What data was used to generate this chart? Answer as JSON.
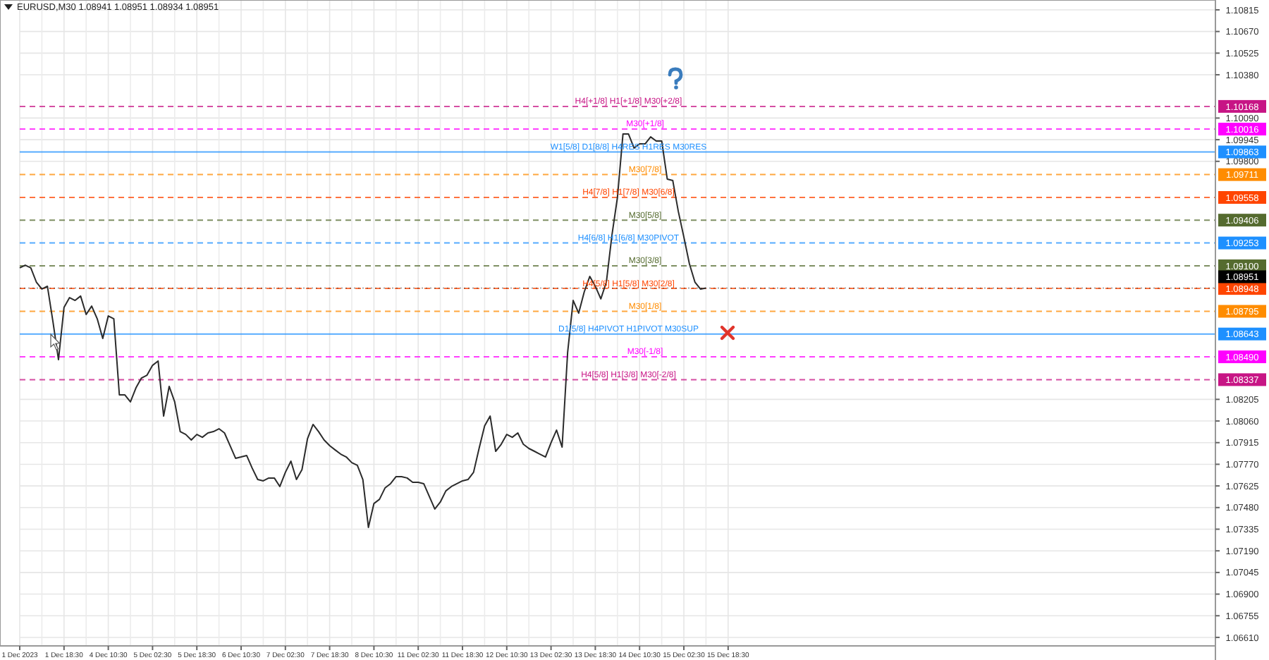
{
  "chart_data": {
    "type": "line",
    "title": "EURUSD,M30  1.08941 1.08951 1.08934 1.08951",
    "categories": [
      "1 Dec 2023",
      null,
      null,
      null,
      null,
      null,
      null,
      null,
      "1 Dec 18:30",
      null,
      null,
      null,
      null,
      null,
      null,
      null,
      "4 Dec 10:30",
      null,
      null,
      null,
      null,
      null,
      null,
      null,
      "5 Dec 02:30",
      null,
      null,
      null,
      null,
      null,
      null,
      null,
      "5 Dec 18:30",
      null,
      null,
      null,
      null,
      null,
      null,
      null,
      "6 Dec 10:30",
      null,
      null,
      null,
      null,
      null,
      null,
      null,
      "7 Dec 02:30",
      null,
      null,
      null,
      null,
      null,
      null,
      null,
      "7 Dec 18:30",
      null,
      null,
      null,
      null,
      null,
      null,
      null,
      "8 Dec 10:30",
      null,
      null,
      null,
      null,
      null,
      null,
      null,
      "11 Dec 02:30",
      null,
      null,
      null,
      null,
      null,
      null,
      null,
      "11 Dec 18:30",
      null,
      null,
      null,
      null,
      null,
      null,
      null,
      "12 Dec 10:30",
      null,
      null,
      null,
      null,
      null,
      null,
      null,
      "13 Dec 02:30",
      null,
      null,
      null,
      null,
      null,
      null,
      null,
      "13 Dec 18:30",
      null,
      null,
      null,
      null,
      null,
      null,
      null,
      "14 Dec 10:30",
      null,
      null,
      null,
      null,
      null,
      null,
      null,
      "15 Dec 02:30",
      null,
      null,
      null,
      null,
      null,
      null,
      null,
      "15 Dec 18:30"
    ],
    "series": [
      {
        "color": "#2b2b2b",
        "values": [
          1.09086,
          1.09104,
          1.09086,
          1.08991,
          1.08944,
          1.08963,
          1.08726,
          1.08471,
          1.08821,
          1.08887,
          1.08868,
          1.08897,
          1.08774,
          1.0883,
          1.08745,
          1.08613,
          1.08764,
          1.08745,
          1.08235,
          1.08235,
          1.08188,
          1.08282,
          1.08348,
          1.08367,
          1.08433,
          1.08462,
          1.08093,
          1.08292,
          1.08188,
          1.07989,
          1.0797,
          1.07933,
          1.0797,
          1.07951,
          1.0798,
          1.07989,
          1.08008,
          1.0798,
          1.07895,
          1.0781,
          1.07819,
          1.07829,
          1.07744,
          1.07668,
          1.07659,
          1.07678,
          1.07678,
          1.07621,
          1.07716,
          1.07791,
          1.07668,
          1.07734,
          1.07942,
          1.08037,
          1.07989,
          1.07933,
          1.07895,
          1.07866,
          1.07838,
          1.07819,
          1.07781,
          1.07763,
          1.07668,
          1.07347,
          1.07507,
          1.07535,
          1.07611,
          1.0764,
          1.07687,
          1.07687,
          1.07678,
          1.07649,
          1.07649,
          1.0764,
          1.07555,
          1.0747,
          1.07517,
          1.07592,
          1.07621,
          1.0764,
          1.07659,
          1.07668,
          1.07716,
          1.07876,
          1.08027,
          1.08093,
          1.07857,
          1.07904,
          1.0797,
          1.07951,
          1.0798,
          1.07904,
          1.07876,
          1.07857,
          1.07838,
          1.07819,
          1.07914,
          1.07999,
          1.07885,
          1.08519,
          1.08868,
          1.08783,
          1.08925,
          1.09029,
          1.08963,
          1.08878,
          1.08991,
          1.09303,
          1.09558,
          1.09983,
          1.09983,
          1.09889,
          1.09917,
          1.09917,
          1.09964,
          1.09936,
          1.09936,
          1.09681,
          1.09671,
          1.09464,
          1.09293,
          1.09114,
          1.08991,
          1.08944,
          1.08951,
          null,
          null,
          null,
          null
        ]
      }
    ],
    "ylim": [
      1.06553,
      1.10881
    ],
    "yticks": [
      {
        "value": 1.10815,
        "label": "1.10815"
      },
      {
        "value": 1.1067,
        "label": "1.10670"
      },
      {
        "value": 1.10525,
        "label": "1.10525"
      },
      {
        "value": 1.1038,
        "label": "1.10380"
      },
      {
        "value": 1.1009,
        "label": "1.10090"
      },
      {
        "value": 1.09945,
        "label": "1.09945"
      },
      {
        "value": 1.098,
        "label": "1.09800"
      },
      {
        "value": 1.08205,
        "label": "1.08205"
      },
      {
        "value": 1.0806,
        "label": "1.08060"
      },
      {
        "value": 1.07915,
        "label": "1.07915"
      },
      {
        "value": 1.0777,
        "label": "1.07770"
      },
      {
        "value": 1.07625,
        "label": "1.07625"
      },
      {
        "value": 1.0748,
        "label": "1.07480"
      },
      {
        "value": 1.07335,
        "label": "1.07335"
      },
      {
        "value": 1.0719,
        "label": "1.07190"
      },
      {
        "value": 1.07045,
        "label": "1.07045"
      },
      {
        "value": 1.069,
        "label": "1.06900"
      },
      {
        "value": 1.06755,
        "label": "1.06755"
      },
      {
        "value": 1.0661,
        "label": "1.06610"
      }
    ],
    "grid": true,
    "ref_lines": [
      {
        "axis": "y",
        "value": 1.10168,
        "label": "1.10168",
        "color": "#c71585",
        "line_style": "dashed"
      },
      {
        "axis": "y",
        "value": 1.10016,
        "label": "1.10016",
        "color": "#ff00ff",
        "line_style": "dashed"
      },
      {
        "axis": "y",
        "value": 1.09863,
        "label": "1.09863",
        "color": "#1e90ff",
        "line_style": "solid"
      },
      {
        "axis": "y",
        "value": 1.09711,
        "label": "1.09711",
        "color": "#ff8c00",
        "line_style": "dashed"
      },
      {
        "axis": "y",
        "value": 1.09558,
        "label": "1.09558",
        "color": "#ff4500",
        "line_style": "dashed"
      },
      {
        "axis": "y",
        "value": 1.09406,
        "label": "1.09406",
        "color": "#556b2f",
        "line_style": "dashed"
      },
      {
        "axis": "y",
        "value": 1.09253,
        "label": "1.09253",
        "color": "#1e90ff",
        "line_style": "dashed"
      },
      {
        "axis": "y",
        "value": 1.091,
        "label": "1.09100",
        "color": "#556b2f",
        "line_style": "dashed"
      },
      {
        "axis": "y",
        "value": 1.08948,
        "label": "1.08948",
        "color": "#ff4500",
        "line_style": "dashed"
      },
      {
        "axis": "y",
        "value": 1.08795,
        "label": "1.08795",
        "color": "#ff8c00",
        "line_style": "dashed"
      },
      {
        "axis": "y",
        "value": 1.08643,
        "label": "1.08643",
        "color": "#1e90ff",
        "line_style": "solid"
      },
      {
        "axis": "y",
        "value": 1.0849,
        "label": "1.08490",
        "color": "#ff00ff",
        "line_style": "dashed"
      },
      {
        "axis": "y",
        "value": 1.08337,
        "label": "1.08337",
        "color": "#c71585",
        "line_style": "dashed"
      },
      {
        "axis": "y",
        "value": 1.08951,
        "label": "1.08951",
        "color": "#000000",
        "line_style": "dotted"
      }
    ],
    "annotations": [
      {
        "text": "H4[+1/8] H1[+1/8] M30[+2/8]",
        "y": 1.10168
      },
      {
        "text": "M30[+1/8]",
        "y": 1.10016
      },
      {
        "text": "W1[5/8] D1[8/8] H4RES H1RES M30RES",
        "y": 1.09863
      },
      {
        "text": "M30[7/8]",
        "y": 1.09711
      },
      {
        "text": "H4[7/8] H1[7/8] M30[6/8]",
        "y": 1.09558
      },
      {
        "text": "M30[5/8]",
        "y": 1.09406
      },
      {
        "text": "H4[6/8] H1[6/8] M30PIVOT",
        "y": 1.09253
      },
      {
        "text": "M30[3/8]",
        "y": 1.091
      },
      {
        "text": "H4[5/8] H1[5/8] M30[2/8]",
        "y": 1.08948
      },
      {
        "text": "M30[1/8]",
        "y": 1.08795
      },
      {
        "text": "D1[5/8] H4PIVOT H1PIVOT M30SUP",
        "y": 1.08643
      },
      {
        "text": "M30[-1/8]",
        "y": 1.0849
      },
      {
        "text": "H4[5/8] H1[3/8] M30[-2/8]",
        "y": 1.08337
      }
    ]
  }
}
